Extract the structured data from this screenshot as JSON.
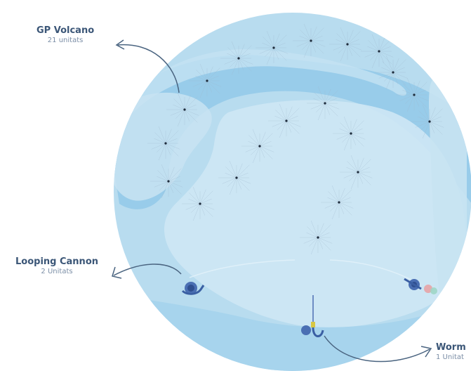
{
  "labels": {
    "volcano": {
      "name": "GP Volcano",
      "count": "21 unitats"
    },
    "looping": {
      "name": "Looping Cannon",
      "count": "2 Unitats"
    },
    "worm": {
      "name": "Worm",
      "count": "1 Unitat"
    }
  },
  "colors": {
    "pool_outer": "#b8dcef",
    "pool_deep": "#8ec7e8",
    "pool_light": "#cbe4f2",
    "nozzle": "#1d2b3a",
    "arrow": "#4a6480",
    "cannon": "#4a6fb3",
    "worm_accent": "#d8c744"
  },
  "icons": [
    "volcano-nozzle-icon",
    "looping-cannon-icon",
    "worm-slide-icon",
    "callout-arrow-icon"
  ]
}
